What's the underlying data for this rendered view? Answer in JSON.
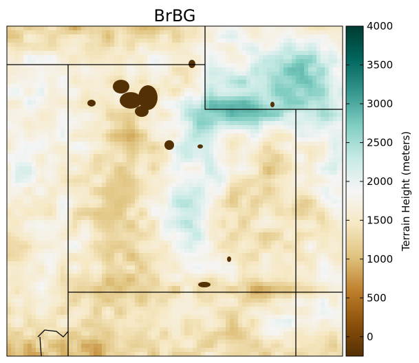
{
  "chart_data": {
    "type": "heatmap",
    "title": "BrBG",
    "colormap": "BrBG",
    "colorbar": {
      "label": "Terrain Height (meters)",
      "range": [
        -250,
        4000
      ],
      "ticks": [
        0,
        500,
        1000,
        1500,
        2000,
        2500,
        3000,
        3500,
        4000
      ],
      "tick_labels": [
        "0",
        "500",
        "1000",
        "1500",
        "2000",
        "2500",
        "3000",
        "3500",
        "4000"
      ],
      "position": "right"
    },
    "xlabel": "",
    "ylabel": "",
    "grid": false,
    "stops": [
      "#543005",
      "#8c510a",
      "#bf812d",
      "#dfc27d",
      "#f6e8c3",
      "#f5f5f5",
      "#c7eae5",
      "#80cdc1",
      "#35978f",
      "#01665e",
      "#003c30"
    ],
    "frame_color": "#000000",
    "border_color": "#000000"
  }
}
